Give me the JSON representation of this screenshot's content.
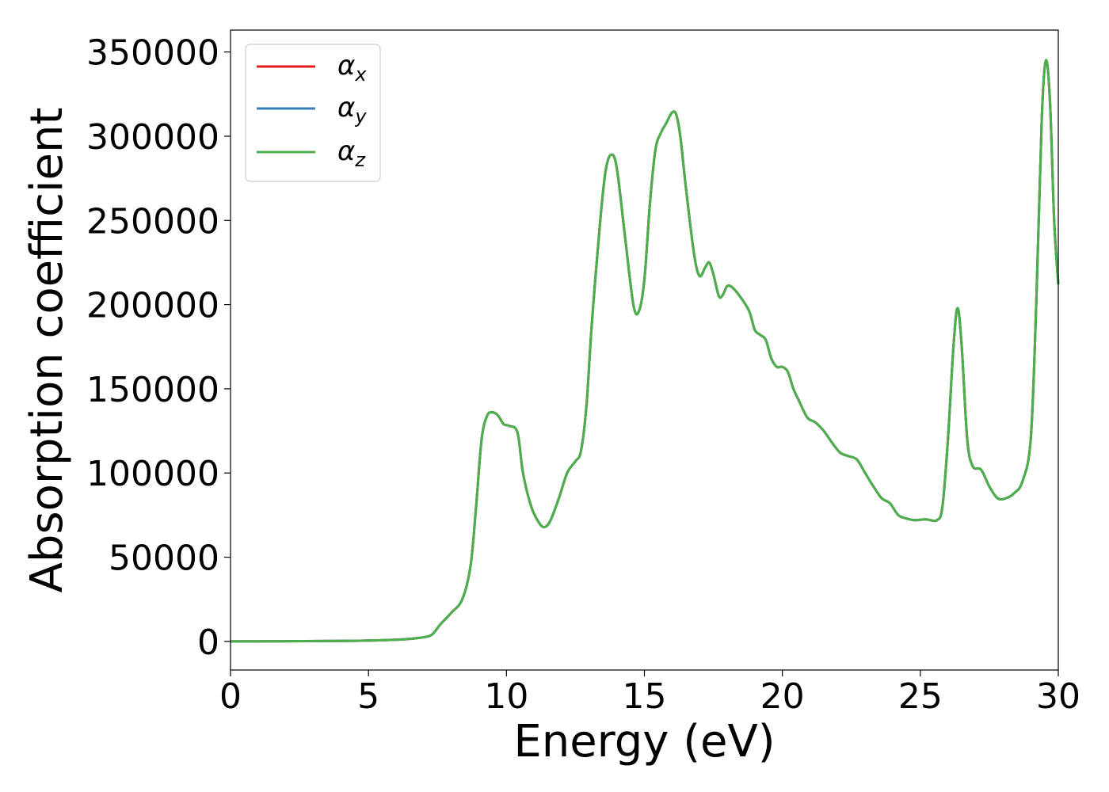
{
  "chart_data": {
    "type": "line",
    "title": "",
    "xlabel": "Energy (eV)",
    "ylabel": "Absorption coefficient",
    "xlim": [
      0,
      30
    ],
    "ylim": [
      -17000,
      363000
    ],
    "xticks": [
      0,
      5,
      10,
      15,
      20,
      25,
      30
    ],
    "xtick_labels": [
      "0",
      "5",
      "10",
      "15",
      "20",
      "25",
      "30"
    ],
    "yticks": [
      0,
      50000,
      100000,
      150000,
      200000,
      250000,
      300000,
      350000
    ],
    "ytick_labels": [
      "0",
      "50000",
      "100000",
      "150000",
      "200000",
      "250000",
      "300000",
      "350000"
    ],
    "grid": false,
    "legend_position": "top-left",
    "series": [
      {
        "name": "α",
        "subscript": "x",
        "color": "#e41a1c",
        "ref": "base"
      },
      {
        "name": "α",
        "subscript": "y",
        "color": "#377eb8",
        "ref": "base"
      },
      {
        "name": "α",
        "subscript": "z",
        "color": "#4daf4a",
        "ref": "base"
      }
    ],
    "base": {
      "x": [
        0,
        2,
        4,
        5,
        6,
        6.5,
        7,
        7.3,
        7.6,
        8.0,
        8.4,
        8.7,
        8.9,
        9.1,
        9.3,
        9.5,
        9.7,
        9.9,
        10.1,
        10.4,
        10.6,
        10.9,
        11.2,
        11.4,
        11.6,
        11.9,
        12.2,
        12.5,
        12.7,
        12.9,
        13.1,
        13.4,
        13.6,
        13.8,
        14.0,
        14.3,
        14.6,
        14.8,
        15.0,
        15.2,
        15.4,
        15.6,
        15.8,
        16.0,
        16.15,
        16.3,
        16.5,
        16.8,
        17.0,
        17.2,
        17.35,
        17.5,
        17.7,
        17.85,
        18.0,
        18.2,
        18.5,
        18.8,
        19.0,
        19.2,
        19.4,
        19.6,
        19.8,
        20.0,
        20.2,
        20.4,
        20.6,
        20.9,
        21.2,
        21.5,
        21.8,
        22.1,
        22.4,
        22.7,
        23.0,
        23.3,
        23.6,
        23.9,
        24.2,
        24.5,
        24.8,
        25.2,
        25.6,
        25.8,
        26.0,
        26.2,
        26.35,
        26.5,
        26.7,
        26.9,
        27.2,
        27.5,
        27.8,
        28.1,
        28.4,
        28.7,
        29.0,
        29.2,
        29.4,
        29.55,
        29.7,
        29.85,
        30.0
      ],
      "y": [
        0,
        100,
        300,
        500,
        1000,
        1500,
        2500,
        4000,
        10000,
        17000,
        25000,
        45000,
        80000,
        120000,
        134000,
        136000,
        134000,
        129000,
        128000,
        124000,
        100000,
        80000,
        70000,
        68000,
        72000,
        85000,
        100000,
        107000,
        113000,
        140000,
        190000,
        250000,
        280000,
        289000,
        281000,
        240000,
        200000,
        196000,
        215000,
        260000,
        292000,
        302000,
        308000,
        314000,
        313000,
        300000,
        270000,
        230000,
        217000,
        222000,
        225000,
        218000,
        205000,
        206000,
        211000,
        210000,
        204000,
        196000,
        185000,
        182000,
        179000,
        168000,
        163000,
        163000,
        160000,
        150000,
        143000,
        133000,
        130000,
        125000,
        118000,
        112000,
        110000,
        108000,
        100000,
        92000,
        85000,
        82000,
        75000,
        73000,
        72000,
        72500,
        72000,
        80000,
        120000,
        175000,
        198000,
        175000,
        120000,
        104000,
        102000,
        92000,
        85000,
        85000,
        88000,
        95000,
        120000,
        200000,
        310000,
        345000,
        320000,
        250000,
        212000
      ]
    }
  },
  "legend": {
    "entries": [
      {
        "symbol": "α",
        "sub": "x"
      },
      {
        "symbol": "α",
        "sub": "y"
      },
      {
        "symbol": "α",
        "sub": "z"
      }
    ]
  }
}
